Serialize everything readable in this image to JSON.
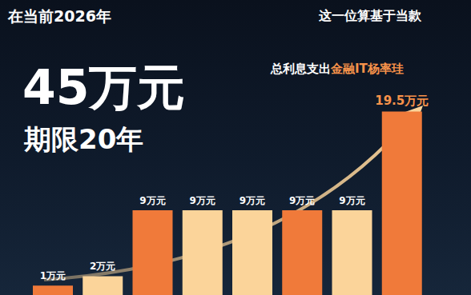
{
  "chart_data": {
    "type": "bar",
    "title": "45万元",
    "subtitle": "期限20年",
    "header_left": "在当前2026年",
    "header_right": "这一位算基于当款",
    "annotations": [
      {
        "text": "总利息支出",
        "color": "#ffffff"
      },
      {
        "text": "金融IT杨率珪",
        "color": "#f7924a"
      }
    ],
    "categories": [
      null,
      null,
      null,
      null,
      null,
      null,
      null,
      null
    ],
    "values": [
      1,
      2,
      9,
      9,
      9,
      9,
      9,
      19.5
    ],
    "value_labels": [
      "1万元",
      "2万元",
      "9万元",
      "9万元",
      "9万元",
      "9万元",
      "9万元",
      "19.5万元"
    ],
    "colors": [
      "#f07a3a",
      "#fbd49a",
      "#f07a3a",
      "#fbd49a",
      "#fbd49a",
      "#f07a3a",
      "#fbd49a",
      "#f07a3a"
    ],
    "ylim": [
      0,
      22
    ],
    "data_labels": true,
    "tick_labels": false,
    "grid": false
  }
}
